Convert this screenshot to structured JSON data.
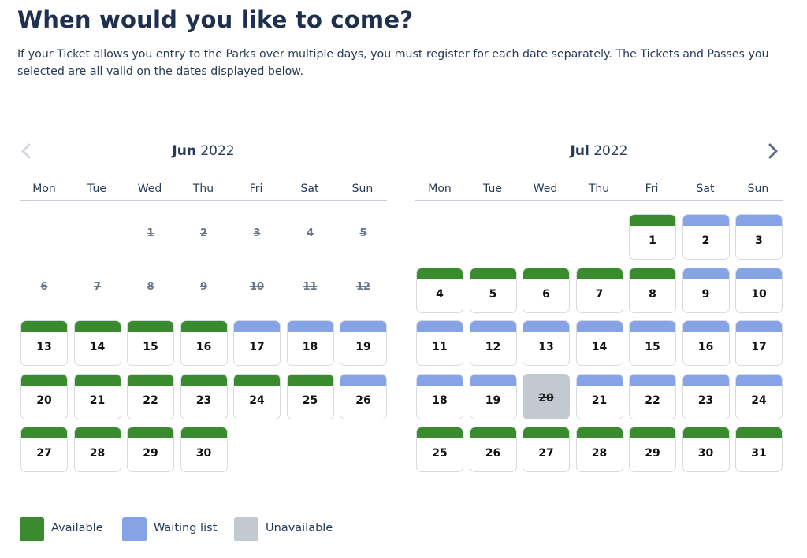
{
  "header": {
    "title": "When would you like to come?",
    "intro": "If your Ticket allows you entry to the Parks over multiple days, you must register for each date separately. The Tickets and Passes you selected are all valid on the dates displayed below."
  },
  "colors": {
    "available": "#3a8a2e",
    "waiting": "#86a3e6",
    "unavailable": "#c3c9d1"
  },
  "weekdays": [
    "Mon",
    "Tue",
    "Wed",
    "Thu",
    "Fri",
    "Sat",
    "Sun"
  ],
  "calendars": [
    {
      "month": "Jun",
      "year": "2022",
      "first_weekday_index": 2,
      "days": [
        {
          "d": "1",
          "s": "past"
        },
        {
          "d": "2",
          "s": "past"
        },
        {
          "d": "3",
          "s": "past"
        },
        {
          "d": "4",
          "s": "past"
        },
        {
          "d": "5",
          "s": "past"
        },
        {
          "d": "6",
          "s": "past"
        },
        {
          "d": "7",
          "s": "past"
        },
        {
          "d": "8",
          "s": "past"
        },
        {
          "d": "9",
          "s": "past"
        },
        {
          "d": "10",
          "s": "past"
        },
        {
          "d": "11",
          "s": "past"
        },
        {
          "d": "12",
          "s": "past"
        },
        {
          "d": "13",
          "s": "available"
        },
        {
          "d": "14",
          "s": "available"
        },
        {
          "d": "15",
          "s": "available"
        },
        {
          "d": "16",
          "s": "available"
        },
        {
          "d": "17",
          "s": "waiting"
        },
        {
          "d": "18",
          "s": "waiting"
        },
        {
          "d": "19",
          "s": "waiting"
        },
        {
          "d": "20",
          "s": "available"
        },
        {
          "d": "21",
          "s": "available"
        },
        {
          "d": "22",
          "s": "available"
        },
        {
          "d": "23",
          "s": "available"
        },
        {
          "d": "24",
          "s": "available"
        },
        {
          "d": "25",
          "s": "available"
        },
        {
          "d": "26",
          "s": "waiting"
        },
        {
          "d": "27",
          "s": "available"
        },
        {
          "d": "28",
          "s": "available"
        },
        {
          "d": "29",
          "s": "available"
        },
        {
          "d": "30",
          "s": "available"
        }
      ]
    },
    {
      "month": "Jul",
      "year": "2022",
      "first_weekday_index": 4,
      "days": [
        {
          "d": "1",
          "s": "available"
        },
        {
          "d": "2",
          "s": "waiting"
        },
        {
          "d": "3",
          "s": "waiting"
        },
        {
          "d": "4",
          "s": "available"
        },
        {
          "d": "5",
          "s": "available"
        },
        {
          "d": "6",
          "s": "available"
        },
        {
          "d": "7",
          "s": "available"
        },
        {
          "d": "8",
          "s": "available"
        },
        {
          "d": "9",
          "s": "waiting"
        },
        {
          "d": "10",
          "s": "waiting"
        },
        {
          "d": "11",
          "s": "waiting"
        },
        {
          "d": "12",
          "s": "waiting"
        },
        {
          "d": "13",
          "s": "waiting"
        },
        {
          "d": "14",
          "s": "waiting"
        },
        {
          "d": "15",
          "s": "waiting"
        },
        {
          "d": "16",
          "s": "waiting"
        },
        {
          "d": "17",
          "s": "waiting"
        },
        {
          "d": "18",
          "s": "waiting"
        },
        {
          "d": "19",
          "s": "waiting"
        },
        {
          "d": "20",
          "s": "unavailable"
        },
        {
          "d": "21",
          "s": "waiting"
        },
        {
          "d": "22",
          "s": "waiting"
        },
        {
          "d": "23",
          "s": "waiting"
        },
        {
          "d": "24",
          "s": "waiting"
        },
        {
          "d": "25",
          "s": "available"
        },
        {
          "d": "26",
          "s": "available"
        },
        {
          "d": "27",
          "s": "available"
        },
        {
          "d": "28",
          "s": "available"
        },
        {
          "d": "29",
          "s": "available"
        },
        {
          "d": "30",
          "s": "available"
        },
        {
          "d": "31",
          "s": "available"
        }
      ]
    }
  ],
  "navigation": {
    "prev_icon": "chevron-left-icon",
    "next_icon": "chevron-right-icon"
  },
  "legend": [
    {
      "label": "Available",
      "color": "#3a8a2e"
    },
    {
      "label": "Waiting list",
      "color": "#86a3e6"
    },
    {
      "label": "Unavailable",
      "color": "#c3c9d1"
    }
  ]
}
